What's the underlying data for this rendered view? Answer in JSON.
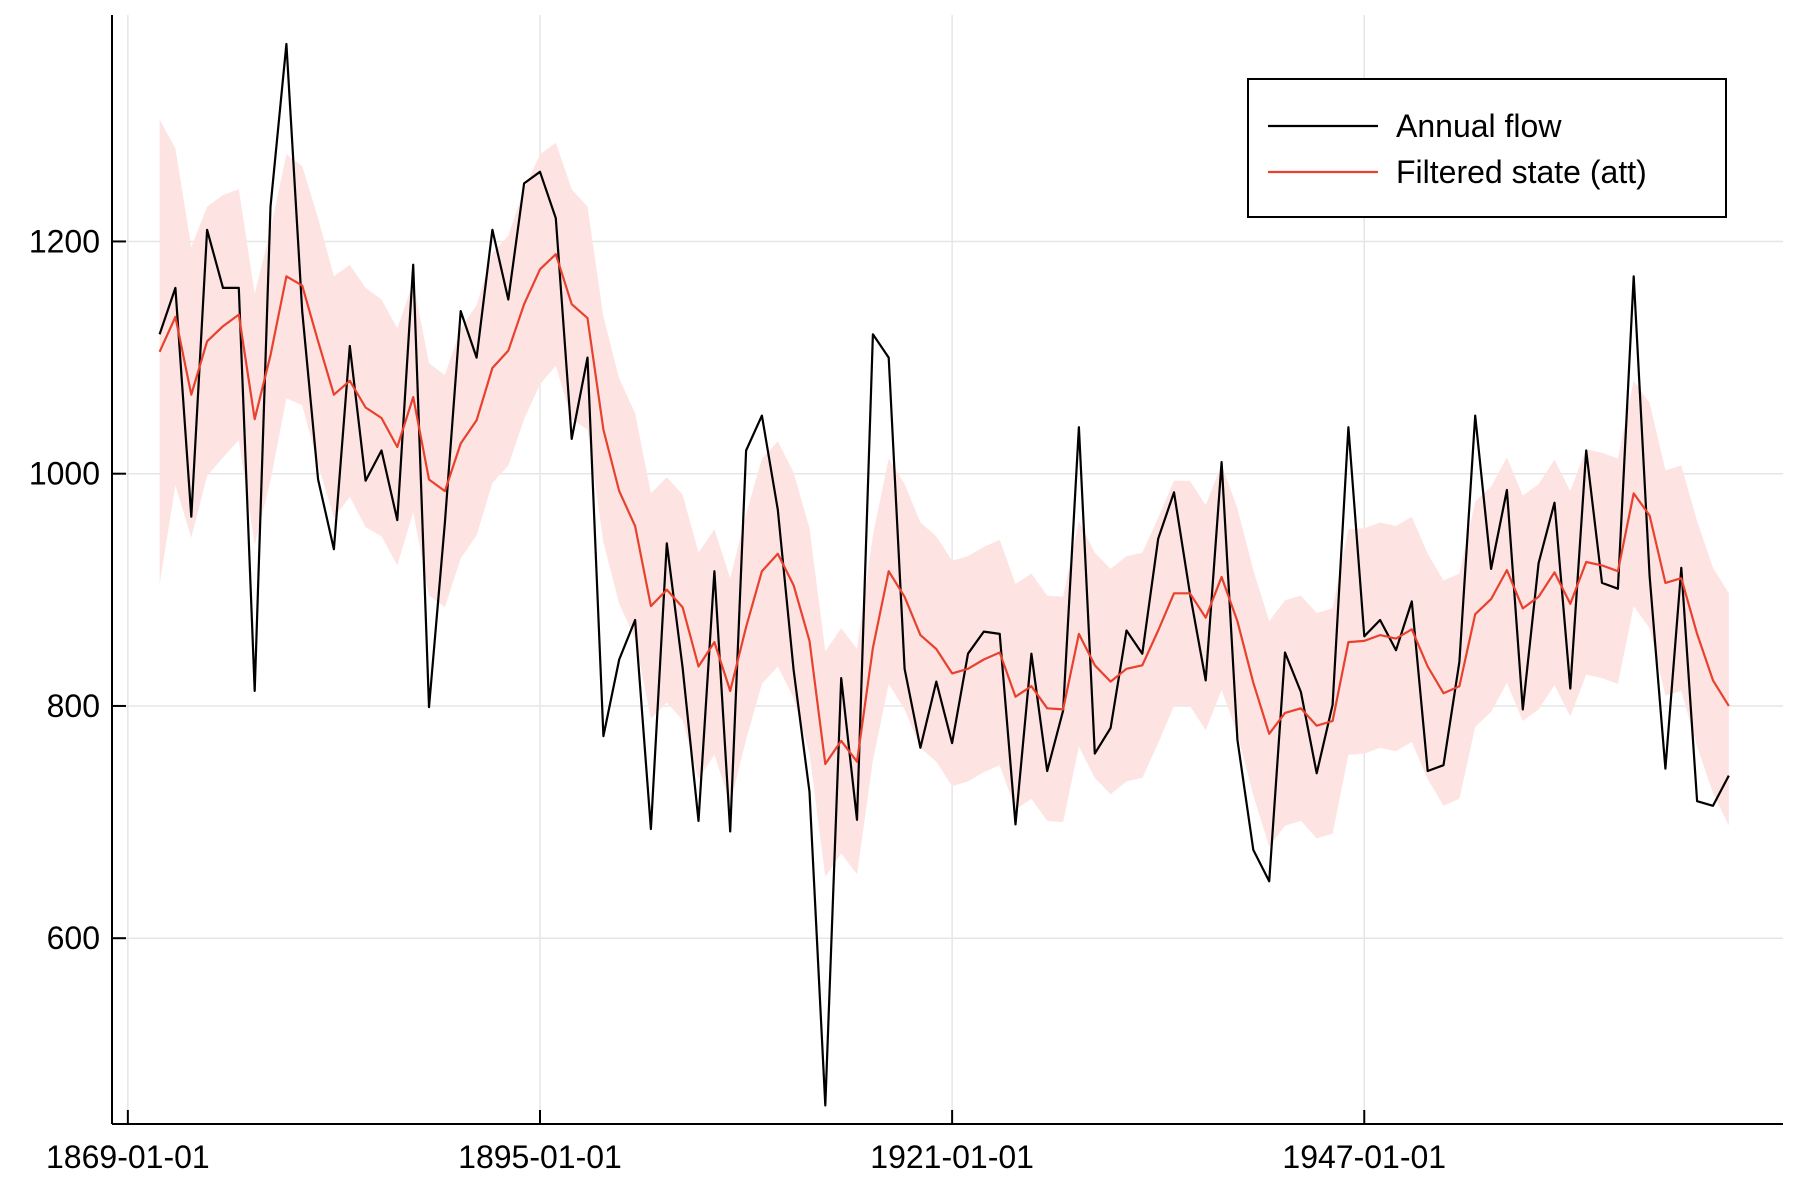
{
  "chart_data": {
    "type": "line",
    "title": "",
    "xlabel": "",
    "ylabel": "",
    "x_start_year": 1871,
    "x_end_year": 1970,
    "x_ticks": [
      "1869-01-01",
      "1895-01-01",
      "1921-01-01",
      "1947-01-01"
    ],
    "y_ticks": [
      600,
      800,
      1000,
      1200
    ],
    "xlim": [
      "1868-01-01",
      "1973-06-01"
    ],
    "ylim": [
      440,
      1395
    ],
    "grid": true,
    "legend_position": "top-right",
    "series": [
      {
        "name": "Annual flow",
        "color": "#000000",
        "values": [
          1120,
          1160,
          963,
          1210,
          1160,
          1160,
          813,
          1230,
          1370,
          1140,
          995,
          935,
          1110,
          994,
          1020,
          960,
          1180,
          799,
          958,
          1140,
          1100,
          1210,
          1150,
          1250,
          1260,
          1220,
          1030,
          1100,
          774,
          840,
          874,
          694,
          940,
          833,
          701,
          916,
          692,
          1020,
          1050,
          969,
          831,
          726,
          456,
          824,
          702,
          1120,
          1100,
          832,
          764,
          821,
          768,
          845,
          864,
          862,
          698,
          845,
          744,
          796,
          1040,
          759,
          781,
          865,
          845,
          944,
          984,
          897,
          822,
          1010,
          771,
          676,
          649,
          846,
          812,
          742,
          801,
          1040,
          860,
          874,
          848,
          890,
          744,
          749,
          838,
          1050,
          918,
          986,
          797,
          923,
          975,
          815,
          1020,
          906,
          901,
          1170,
          912,
          746,
          919,
          718,
          714,
          740
        ]
      },
      {
        "name": "Filtered state (att)",
        "color": "#e8412e",
        "values": [
          1105,
          1135,
          1068,
          1114,
          1127,
          1137,
          1047,
          1102,
          1170,
          1162,
          1114,
          1068,
          1080,
          1057,
          1048,
          1023,
          1066,
          995,
          985,
          1026,
          1046,
          1091,
          1106,
          1146,
          1176,
          1189,
          1146,
          1134,
          1038,
          985,
          955,
          886,
          900,
          885,
          834,
          855,
          813,
          868,
          916,
          931,
          904,
          856,
          750,
          770,
          752,
          850,
          916,
          894,
          861,
          849,
          828,
          832,
          840,
          846,
          808,
          817,
          798,
          797,
          862,
          835,
          821,
          832,
          835,
          865,
          897,
          897,
          876,
          911,
          873,
          820,
          776,
          794,
          798,
          783,
          787,
          855,
          856,
          861,
          858,
          866,
          834,
          811,
          817,
          879,
          892,
          917,
          884,
          894,
          915,
          888,
          924,
          921,
          916,
          983,
          964,
          906,
          910,
          862,
          822,
          800
        ]
      }
    ],
    "band": {
      "name": "Filtered state (att) interval",
      "color": "#fde3e1",
      "upper": [
        1305,
        1280,
        1195,
        1230,
        1240,
        1245,
        1155,
        1210,
        1275,
        1265,
        1220,
        1170,
        1180,
        1160,
        1150,
        1125,
        1165,
        1095,
        1085,
        1125,
        1145,
        1190,
        1205,
        1245,
        1275,
        1285,
        1245,
        1230,
        1135,
        1082,
        1052,
        983,
        997,
        982,
        932,
        952,
        910,
        965,
        1013,
        1028,
        1001,
        953,
        847,
        867,
        849,
        947,
        1013,
        991,
        958,
        946,
        925,
        929,
        937,
        943,
        905,
        914,
        895,
        894,
        959,
        932,
        918,
        929,
        932,
        962,
        994,
        994,
        973,
        1008,
        970,
        917,
        873,
        891,
        895,
        880,
        884,
        952,
        953,
        958,
        955,
        963,
        931,
        908,
        914,
        976,
        989,
        1014,
        981,
        991,
        1012,
        985,
        1021,
        1018,
        1013,
        1080,
        1061,
        1003,
        1007,
        959,
        919,
        897
      ],
      "lower": [
        905,
        990,
        945,
        998,
        1014,
        1029,
        939,
        994,
        1065,
        1059,
        1008,
        962,
        980,
        954,
        946,
        921,
        967,
        895,
        885,
        927,
        947,
        992,
        1007,
        1047,
        1077,
        1093,
        1047,
        1038,
        941,
        888,
        858,
        789,
        803,
        788,
        737,
        758,
        716,
        771,
        819,
        834,
        807,
        759,
        653,
        673,
        655,
        753,
        819,
        797,
        764,
        752,
        731,
        735,
        743,
        749,
        711,
        720,
        701,
        700,
        765,
        738,
        724,
        735,
        738,
        768,
        800,
        800,
        779,
        814,
        776,
        723,
        679,
        697,
        701,
        686,
        690,
        758,
        759,
        764,
        761,
        769,
        737,
        714,
        720,
        782,
        795,
        820,
        787,
        797,
        818,
        791,
        827,
        824,
        819,
        886,
        867,
        809,
        813,
        765,
        725,
        697
      ]
    }
  }
}
